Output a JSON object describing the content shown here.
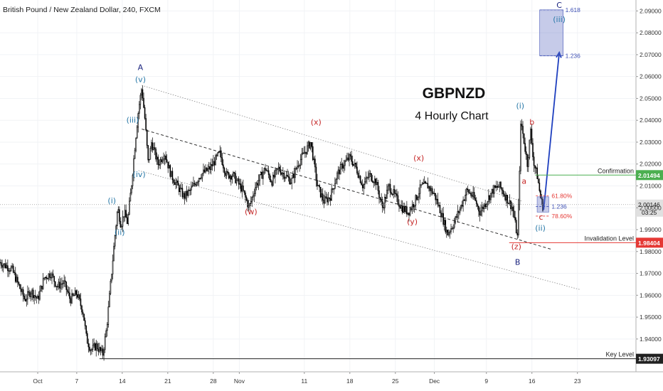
{
  "chart_data": {
    "type": "candlestick",
    "symbol_header": "British Pound / New Zealand Dollar, 240, FXCM",
    "title": "GBPNZD",
    "subtitle": "4 Hourly Chart",
    "ylim": [
      1.925,
      2.095
    ],
    "y_ticks": [
      "2.09000",
      "2.08000",
      "2.07000",
      "2.06000",
      "2.05000",
      "2.04000",
      "2.03000",
      "2.02000",
      "2.01000",
      "2.00000",
      "1.99000",
      "1.98000",
      "1.97000",
      "1.96000",
      "1.95000",
      "1.94000"
    ],
    "x_ticks": [
      {
        "label": "Oct",
        "day": 0
      },
      {
        "label": "7",
        "day": 6
      },
      {
        "label": "14",
        "day": 13
      },
      {
        "label": "21",
        "day": 20
      },
      {
        "label": "28",
        "day": 27
      },
      {
        "label": "Nov",
        "day": 31
      },
      {
        "label": "11",
        "day": 41
      },
      {
        "label": "18",
        "day": 48
      },
      {
        "label": "25",
        "day": 55
      },
      {
        "label": "Dec",
        "day": 61
      },
      {
        "label": "9",
        "day": 69
      },
      {
        "label": "16",
        "day": 76
      },
      {
        "label": "23",
        "day": 83
      }
    ],
    "x_range_days": [
      -5.8,
      92.0
    ],
    "price_path": [
      [
        -5.8,
        1.975
      ],
      [
        -4,
        1.972
      ],
      [
        -3,
        1.965
      ],
      [
        -2,
        1.958
      ],
      [
        -1,
        1.962
      ],
      [
        0,
        1.958
      ],
      [
        1,
        1.968
      ],
      [
        2,
        1.97
      ],
      [
        3,
        1.964
      ],
      [
        4,
        1.966
      ],
      [
        5,
        1.958
      ],
      [
        6,
        1.961
      ],
      [
        7,
        1.952
      ],
      [
        7.5,
        1.94
      ],
      [
        8.2,
        1.935
      ],
      [
        9,
        1.937
      ],
      [
        10,
        1.933
      ],
      [
        10.6,
        1.945
      ],
      [
        11.2,
        1.965
      ],
      [
        11.8,
        1.985
      ],
      [
        12.3,
        2.0
      ],
      [
        12.8,
        1.992
      ],
      [
        13.3,
        1.998
      ],
      [
        13.8,
        1.993
      ],
      [
        14.4,
        2.01
      ],
      [
        15,
        2.03
      ],
      [
        15.5,
        2.045
      ],
      [
        16,
        2.055
      ],
      [
        16.5,
        2.04
      ],
      [
        17,
        2.02
      ],
      [
        17.5,
        2.03
      ],
      [
        18.5,
        2.02
      ],
      [
        19.5,
        2.025
      ],
      [
        20.5,
        2.015
      ],
      [
        21.5,
        2.01
      ],
      [
        22.5,
        2.005
      ],
      [
        23.5,
        2.008
      ],
      [
        25,
        2.015
      ],
      [
        26.5,
        2.018
      ],
      [
        28,
        2.025
      ],
      [
        29,
        2.015
      ],
      [
        30,
        2.015
      ],
      [
        31.5,
        2.008
      ],
      [
        32.5,
        2.0
      ],
      [
        33.5,
        2.01
      ],
      [
        35,
        2.018
      ],
      [
        36,
        2.012
      ],
      [
        37,
        2.018
      ],
      [
        38,
        2.015
      ],
      [
        39,
        2.012
      ],
      [
        40,
        2.02
      ],
      [
        41,
        2.025
      ],
      [
        42,
        2.03
      ],
      [
        42.5,
        2.02
      ],
      [
        43,
        2.01
      ],
      [
        44,
        2.003
      ],
      [
        45,
        2.005
      ],
      [
        46,
        2.015
      ],
      [
        47,
        2.02
      ],
      [
        48,
        2.023
      ],
      [
        49,
        2.018
      ],
      [
        50,
        2.01
      ],
      [
        51,
        2.015
      ],
      [
        52,
        2.012
      ],
      [
        53,
        2.0
      ],
      [
        54,
        2.01
      ],
      [
        55,
        2.005
      ],
      [
        56,
        2.0
      ],
      [
        57,
        1.998
      ],
      [
        58,
        2.003
      ],
      [
        59,
        2.01
      ],
      [
        60,
        2.01
      ],
      [
        61,
        2.006
      ],
      [
        62,
        1.998
      ],
      [
        63,
        1.988
      ],
      [
        64,
        1.993
      ],
      [
        65,
        2.0
      ],
      [
        66,
        2.008
      ],
      [
        67,
        2.005
      ],
      [
        68,
        1.998
      ],
      [
        69,
        2.003
      ],
      [
        70,
        2.008
      ],
      [
        71,
        2.01
      ],
      [
        72,
        2.005
      ],
      [
        73,
        2.0
      ],
      [
        73.8,
        1.986
      ],
      [
        74.3,
        2.04
      ],
      [
        74.8,
        2.03
      ],
      [
        75.3,
        2.02
      ],
      [
        75.8,
        2.035
      ],
      [
        76.3,
        2.02
      ],
      [
        76.8,
        2.015
      ],
      [
        77.3,
        2.005
      ],
      [
        77.8,
        1.999
      ]
    ],
    "annotations": [
      {
        "text": "A",
        "day": 15.8,
        "price": 2.063,
        "color": "#1a237e",
        "size": 13
      },
      {
        "text": "(v)",
        "day": 15.8,
        "price": 2.0575,
        "color": "#2979a8",
        "size": 11
      },
      {
        "text": "(iii)",
        "day": 14.6,
        "price": 2.039,
        "color": "#2979a8",
        "size": 11
      },
      {
        "text": "(iv)",
        "day": 15.6,
        "price": 2.014,
        "color": "#2979a8",
        "size": 11
      },
      {
        "text": "(i)",
        "day": 11.4,
        "price": 2.002,
        "color": "#2979a8",
        "size": 11
      },
      {
        "text": "(ii)",
        "day": 12.6,
        "price": 1.9875,
        "color": "#2979a8",
        "size": 11
      },
      {
        "text": "(w)",
        "day": 32.8,
        "price": 1.997,
        "color": "#c62828",
        "size": 11
      },
      {
        "text": "(x)",
        "day": 42.8,
        "price": 2.038,
        "color": "#c62828",
        "size": 11
      },
      {
        "text": "(x)",
        "day": 58.6,
        "price": 2.0215,
        "color": "#c62828",
        "size": 11
      },
      {
        "text": "(y)",
        "day": 57.6,
        "price": 1.9925,
        "color": "#c62828",
        "size": 11
      },
      {
        "text": "(z)",
        "day": 73.6,
        "price": 1.981,
        "color": "#c62828",
        "size": 11
      },
      {
        "text": "B",
        "day": 73.8,
        "price": 1.974,
        "color": "#1a237e",
        "size": 13
      },
      {
        "text": "(i)",
        "day": 74.2,
        "price": 2.0455,
        "color": "#2979a8",
        "size": 11
      },
      {
        "text": "b",
        "day": 76.0,
        "price": 2.038,
        "color": "#c62828",
        "size": 11
      },
      {
        "text": "a",
        "day": 74.8,
        "price": 2.011,
        "color": "#c62828",
        "size": 11
      },
      {
        "text": "c",
        "day": 77.4,
        "price": 1.9945,
        "color": "#c62828",
        "size": 11
      },
      {
        "text": "(ii)",
        "day": 77.3,
        "price": 1.9895,
        "color": "#2979a8",
        "size": 11
      },
      {
        "text": "C",
        "day": 80.2,
        "price": 2.0915,
        "color": "#1a237e",
        "size": 12
      },
      {
        "text": "(iii)",
        "day": 80.2,
        "price": 2.085,
        "color": "#2979a8",
        "size": 11
      }
    ],
    "fib_levels": [
      {
        "label": "1.618",
        "price": 2.0905,
        "color": "#3f51b5"
      },
      {
        "label": "1.236",
        "price": 2.0695,
        "color": "#3f51b5"
      },
      {
        "label": "61.80%",
        "price": 2.0055,
        "color": "#e53935"
      },
      {
        "label": "1.236",
        "price": 2.0006,
        "color": "#3f51b5"
      },
      {
        "label": "78.60%",
        "price": 1.9962,
        "color": "#e53935"
      }
    ],
    "horizontal_levels": [
      {
        "label": "Confirmation",
        "price": 2.01494,
        "price_label": "2.01494",
        "color": "#4caf50"
      },
      {
        "label": "Invalidation Level",
        "price": 1.98404,
        "price_label": "1.98404",
        "color": "#e53935"
      },
      {
        "label": "Key Level",
        "price": 1.93097,
        "price_label": "1.93097",
        "color": "#212121"
      }
    ],
    "current_price": {
      "value": "2.00146",
      "countdown": "03:25",
      "price": 2.00146
    }
  }
}
